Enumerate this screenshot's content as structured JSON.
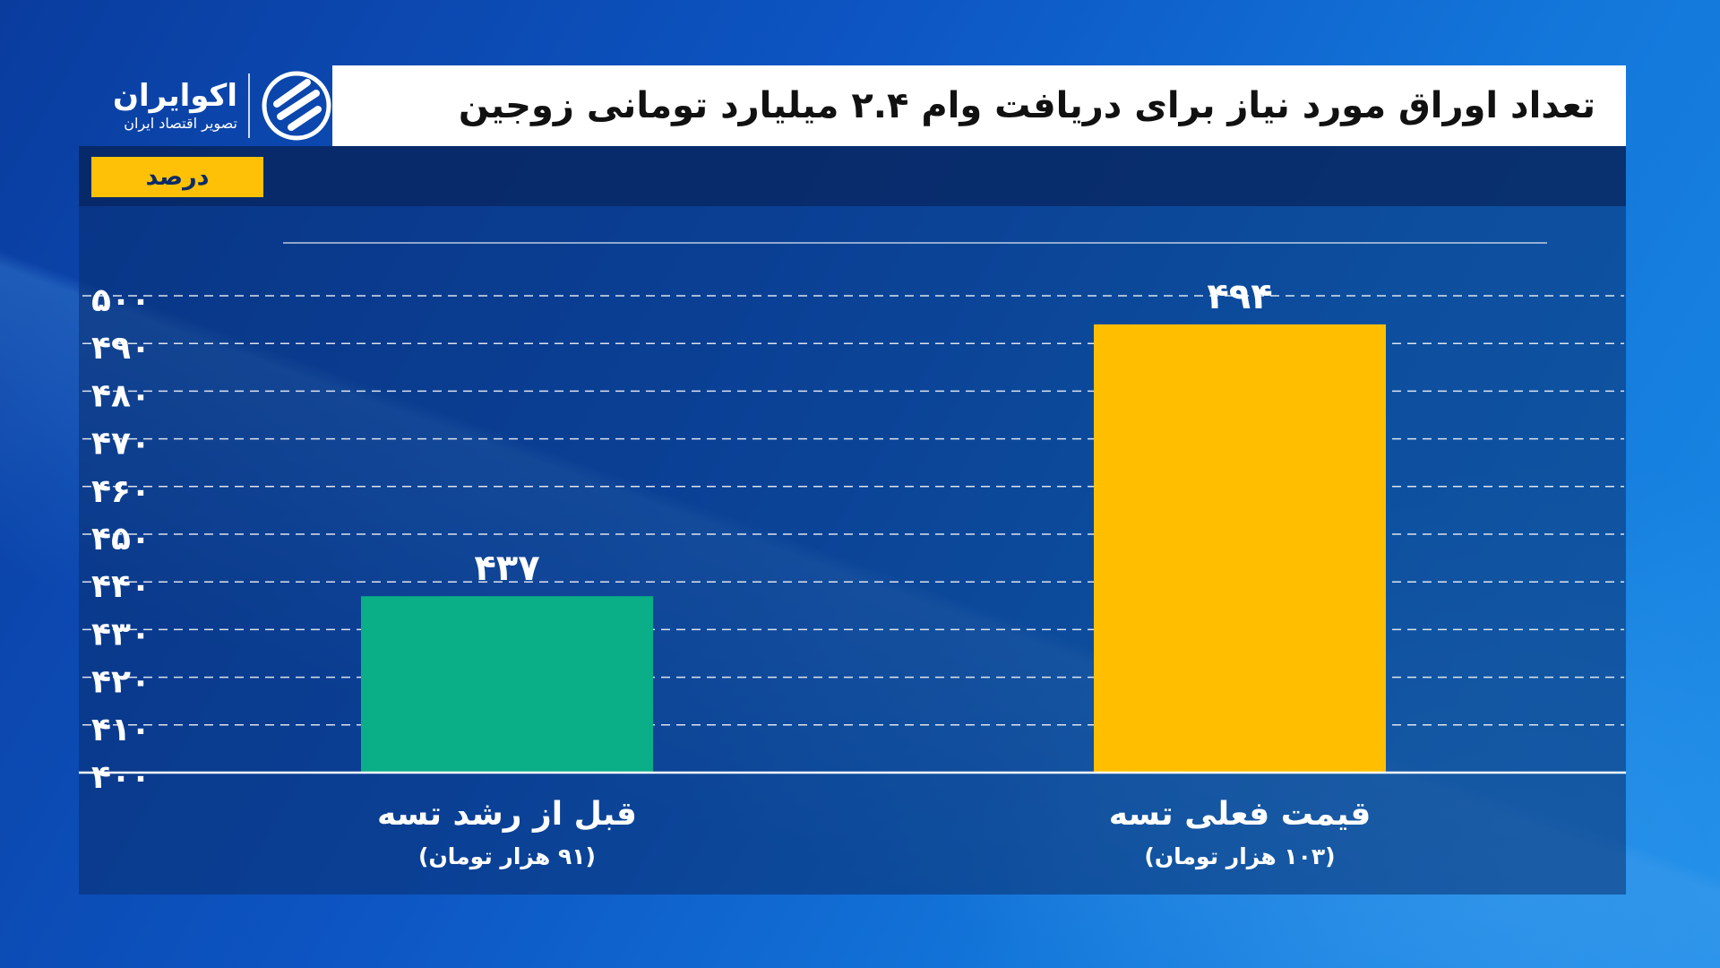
{
  "title": "تعداد اوراق مورد نیاز برای دریافت وام ۲.۴ میلیارد تومانی زوجین",
  "logo": {
    "name": "اکوایران",
    "subtitle": "تصویر اقتصاد ایران"
  },
  "unit_label": "درصد",
  "colors": {
    "bar_before": "#0aae87",
    "bar_current": "#ffbf00",
    "title_bg": "#ffffff",
    "unit_badge": "#ffc107"
  },
  "chart_data": {
    "type": "bar",
    "ylabel": "درصد",
    "ylim": [
      400,
      500
    ],
    "yticks": [
      {
        "value": 400,
        "label": "۴۰۰"
      },
      {
        "value": 410,
        "label": "۴۱۰"
      },
      {
        "value": 420,
        "label": "۴۲۰"
      },
      {
        "value": 430,
        "label": "۴۳۰"
      },
      {
        "value": 440,
        "label": "۴۴۰"
      },
      {
        "value": 450,
        "label": "۴۵۰"
      },
      {
        "value": 460,
        "label": "۴۶۰"
      },
      {
        "value": 470,
        "label": "۴۷۰"
      },
      {
        "value": 480,
        "label": "۴۸۰"
      },
      {
        "value": 490,
        "label": "۴۹۰"
      },
      {
        "value": 500,
        "label": "۵۰۰"
      }
    ],
    "grid": true,
    "bars": [
      {
        "category": "قبل از رشد تسه",
        "sublabel": "(۹۱ هزار تومان)",
        "value": 437,
        "value_label": "۴۳۷",
        "color": "#0aae87"
      },
      {
        "category": "قیمت فعلی تسه",
        "sublabel": "(۱۰۳ هزار تومان)",
        "value": 494,
        "value_label": "۴۹۴",
        "color": "#ffbf00"
      }
    ]
  }
}
